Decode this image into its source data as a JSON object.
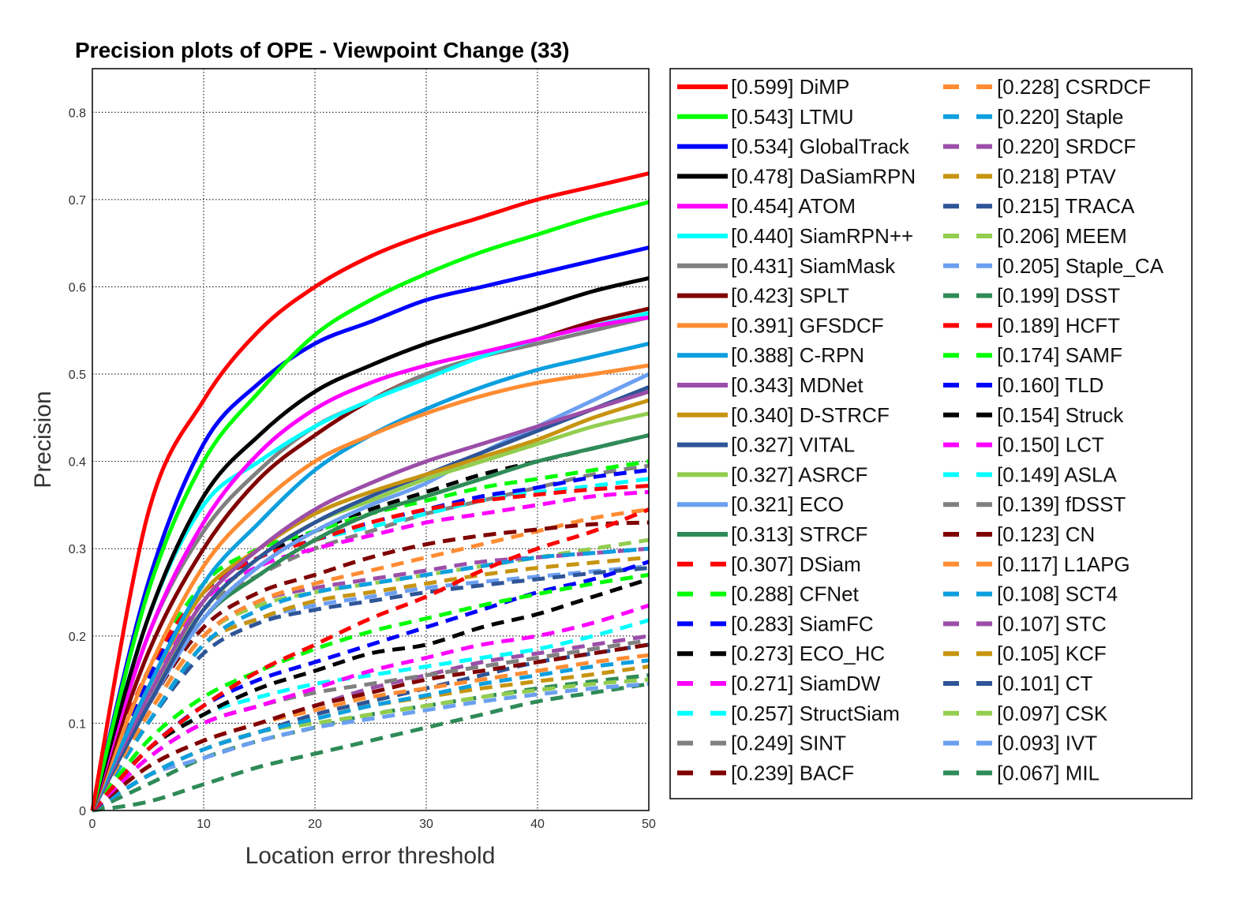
{
  "chart_data": {
    "type": "line",
    "title": "Precision plots of OPE - Viewpoint Change (33)",
    "xlabel": "Location error threshold",
    "ylabel": "Precision",
    "xlim": [
      0,
      50
    ],
    "ylim": [
      0,
      0.85
    ],
    "xticks": [
      "0",
      "10",
      "20",
      "30",
      "40",
      "50"
    ],
    "yticks": [
      "0",
      "0.1",
      "0.2",
      "0.3",
      "0.4",
      "0.5",
      "0.6",
      "0.7",
      "0.8"
    ],
    "grid": true,
    "legend_position": "outside-right",
    "x": [
      0,
      5,
      10,
      15,
      20,
      25,
      30,
      35,
      40,
      45,
      50
    ],
    "series": [
      {
        "name": "[0.599] DiMP",
        "color": "#ff0000",
        "style": "solid",
        "values": [
          0,
          0.34,
          0.47,
          0.55,
          0.6,
          0.635,
          0.66,
          0.68,
          0.7,
          0.715,
          0.73
        ]
      },
      {
        "name": "[0.543] LTMU",
        "color": "#00ff00",
        "style": "solid",
        "values": [
          0,
          0.25,
          0.4,
          0.48,
          0.545,
          0.585,
          0.615,
          0.64,
          0.66,
          0.68,
          0.697
        ]
      },
      {
        "name": "[0.534] GlobalTrack",
        "color": "#0000ff",
        "style": "solid",
        "values": [
          0,
          0.26,
          0.42,
          0.49,
          0.535,
          0.56,
          0.585,
          0.6,
          0.615,
          0.63,
          0.645
        ]
      },
      {
        "name": "[0.478] DaSiamRPN",
        "color": "#000000",
        "style": "solid",
        "values": [
          0,
          0.22,
          0.36,
          0.43,
          0.48,
          0.51,
          0.535,
          0.555,
          0.575,
          0.595,
          0.61
        ]
      },
      {
        "name": "[0.454] ATOM",
        "color": "#ff00ff",
        "style": "solid",
        "values": [
          0,
          0.2,
          0.33,
          0.41,
          0.46,
          0.49,
          0.51,
          0.525,
          0.54,
          0.555,
          0.565
        ]
      },
      {
        "name": "[0.440] SiamRPN++",
        "color": "#00ffff",
        "style": "solid",
        "values": [
          0,
          0.22,
          0.35,
          0.4,
          0.44,
          0.47,
          0.495,
          0.52,
          0.54,
          0.555,
          0.57
        ]
      },
      {
        "name": "[0.431] SiamMask",
        "color": "#808080",
        "style": "solid",
        "values": [
          0,
          0.2,
          0.32,
          0.39,
          0.44,
          0.47,
          0.5,
          0.52,
          0.535,
          0.55,
          0.565
        ]
      },
      {
        "name": "[0.423] SPLT",
        "color": "#800000",
        "style": "solid",
        "values": [
          0,
          0.18,
          0.3,
          0.38,
          0.43,
          0.47,
          0.5,
          0.52,
          0.54,
          0.56,
          0.575
        ]
      },
      {
        "name": "[0.391] GFSDCF",
        "color": "#ff8c32",
        "style": "solid",
        "values": [
          0,
          0.16,
          0.28,
          0.35,
          0.4,
          0.43,
          0.455,
          0.475,
          0.49,
          0.5,
          0.51
        ]
      },
      {
        "name": "[0.388] C-RPN",
        "color": "#0c9fdf",
        "style": "solid",
        "values": [
          0,
          0.14,
          0.26,
          0.33,
          0.39,
          0.43,
          0.46,
          0.485,
          0.505,
          0.52,
          0.535
        ]
      },
      {
        "name": "[0.343] MDNet",
        "color": "#9b4ea8",
        "style": "solid",
        "values": [
          0,
          0.13,
          0.24,
          0.3,
          0.345,
          0.375,
          0.4,
          0.42,
          0.44,
          0.46,
          0.48
        ]
      },
      {
        "name": "[0.340] D-STRCF",
        "color": "#c79410",
        "style": "solid",
        "values": [
          0,
          0.14,
          0.25,
          0.3,
          0.34,
          0.365,
          0.385,
          0.405,
          0.425,
          0.45,
          0.47
        ]
      },
      {
        "name": "[0.327] VITAL",
        "color": "#2e5597",
        "style": "solid",
        "values": [
          0,
          0.12,
          0.23,
          0.29,
          0.33,
          0.36,
          0.385,
          0.41,
          0.435,
          0.46,
          0.485
        ]
      },
      {
        "name": "[0.327] ASRCF",
        "color": "#92cd4f",
        "style": "solid",
        "values": [
          0,
          0.13,
          0.23,
          0.29,
          0.33,
          0.355,
          0.38,
          0.4,
          0.42,
          0.44,
          0.455
        ]
      },
      {
        "name": "[0.321] ECO",
        "color": "#6b9ff0",
        "style": "solid",
        "values": [
          0,
          0.12,
          0.22,
          0.28,
          0.32,
          0.35,
          0.375,
          0.41,
          0.44,
          0.47,
          0.5
        ]
      },
      {
        "name": "[0.313] STRCF",
        "color": "#2e8b57",
        "style": "solid",
        "values": [
          0,
          0.12,
          0.22,
          0.27,
          0.31,
          0.34,
          0.36,
          0.38,
          0.4,
          0.415,
          0.43
        ]
      },
      {
        "name": "[0.307] DSiam",
        "color": "#ff0000",
        "style": "dashed",
        "values": [
          0,
          0.07,
          0.12,
          0.16,
          0.19,
          0.22,
          0.245,
          0.275,
          0.3,
          0.32,
          0.345
        ]
      },
      {
        "name": "[0.288] CFNet",
        "color": "#00ff00",
        "style": "dashed",
        "values": [
          0,
          0.08,
          0.13,
          0.16,
          0.185,
          0.205,
          0.22,
          0.235,
          0.248,
          0.26,
          0.27
        ]
      },
      {
        "name": "[0.283] SiamFC",
        "color": "#0000ff",
        "style": "dashed",
        "values": [
          0,
          0.07,
          0.12,
          0.15,
          0.17,
          0.19,
          0.21,
          0.23,
          0.25,
          0.265,
          0.285
        ]
      },
      {
        "name": "[0.273] ECO_HC",
        "color": "#000000",
        "style": "dashed",
        "values": [
          0,
          0.07,
          0.11,
          0.14,
          0.16,
          0.18,
          0.19,
          0.21,
          0.225,
          0.245,
          0.265
        ]
      },
      {
        "name": "[0.271] SiamDW",
        "color": "#ff00ff",
        "style": "dashed",
        "values": [
          0,
          0.06,
          0.1,
          0.12,
          0.14,
          0.16,
          0.175,
          0.19,
          0.2,
          0.215,
          0.235
        ]
      },
      {
        "name": "[0.257] StructSiam",
        "color": "#00ffff",
        "style": "dashed",
        "values": [
          0,
          0.07,
          0.11,
          0.13,
          0.145,
          0.155,
          0.165,
          0.175,
          0.185,
          0.2,
          0.218
        ]
      },
      {
        "name": "[0.249] SINT",
        "color": "#808080",
        "style": "dashed",
        "values": [
          0,
          0.06,
          0.1,
          0.12,
          0.135,
          0.145,
          0.155,
          0.165,
          0.175,
          0.185,
          0.195
        ]
      },
      {
        "name": "[0.239] BACF",
        "color": "#800000",
        "style": "dashed",
        "values": [
          0,
          0.05,
          0.08,
          0.1,
          0.12,
          0.135,
          0.15,
          0.16,
          0.17,
          0.18,
          0.19
        ]
      },
      {
        "name": "[0.228] CSRDCF",
        "color": "#ff8c32",
        "style": "dashed",
        "values": [
          0,
          0.05,
          0.08,
          0.1,
          0.115,
          0.13,
          0.14,
          0.15,
          0.16,
          0.17,
          0.178
        ]
      },
      {
        "name": "[0.220] Staple",
        "color": "#0c9fdf",
        "style": "dashed",
        "values": [
          0,
          0.04,
          0.07,
          0.09,
          0.105,
          0.12,
          0.132,
          0.145,
          0.155,
          0.165,
          0.172
        ]
      },
      {
        "name": "[0.220] SRDCF",
        "color": "#9b4ea8",
        "style": "dashed",
        "values": [
          0,
          0.05,
          0.08,
          0.1,
          0.12,
          0.14,
          0.155,
          0.17,
          0.18,
          0.19,
          0.2
        ]
      },
      {
        "name": "[0.218] PTAV",
        "color": "#c79410",
        "style": "dashed",
        "values": [
          0,
          0.04,
          0.07,
          0.09,
          0.105,
          0.12,
          0.13,
          0.14,
          0.148,
          0.156,
          0.165
        ]
      },
      {
        "name": "[0.215] TRACA",
        "color": "#2e5597",
        "style": "dashed",
        "values": [
          0,
          0.04,
          0.07,
          0.09,
          0.11,
          0.125,
          0.14,
          0.155,
          0.17,
          0.18,
          0.19
        ]
      },
      {
        "name": "[0.206] MEEM",
        "color": "#92cd4f",
        "style": "dashed",
        "values": [
          0,
          0.04,
          0.07,
          0.09,
          0.1,
          0.11,
          0.12,
          0.13,
          0.138,
          0.145,
          0.15
        ]
      },
      {
        "name": "[0.205] Staple_CA",
        "color": "#6b9ff0",
        "style": "dashed",
        "values": [
          0,
          0.04,
          0.06,
          0.08,
          0.095,
          0.105,
          0.115,
          0.125,
          0.133,
          0.14,
          0.145
        ]
      },
      {
        "name": "[0.199] DSST",
        "color": "#2e8b57",
        "style": "dashed",
        "values": [
          0,
          0.03,
          0.06,
          0.08,
          0.095,
          0.11,
          0.12,
          0.13,
          0.14,
          0.148,
          0.155
        ]
      },
      {
        "name": "[0.189] HCFT",
        "color": "#ff0000",
        "style": "dashed",
        "values": [
          0,
          0.16,
          0.25,
          0.29,
          0.31,
          0.33,
          0.345,
          0.355,
          0.362,
          0.368,
          0.372
        ]
      },
      {
        "name": "[0.174] SAMF",
        "color": "#00ff00",
        "style": "dashed",
        "values": [
          0,
          0.16,
          0.26,
          0.3,
          0.32,
          0.34,
          0.355,
          0.37,
          0.38,
          0.39,
          0.4
        ]
      },
      {
        "name": "[0.160] TLD",
        "color": "#0000ff",
        "style": "dashed",
        "values": [
          0,
          0.15,
          0.25,
          0.29,
          0.31,
          0.33,
          0.345,
          0.36,
          0.37,
          0.382,
          0.39
        ]
      },
      {
        "name": "[0.154] Struck",
        "color": "#000000",
        "style": "dashed",
        "values": [
          0,
          0.15,
          0.25,
          0.29,
          0.32,
          0.345,
          0.365,
          0.385,
          0.4,
          0.415,
          0.43
        ]
      },
      {
        "name": "[0.150] LCT",
        "color": "#ff00ff",
        "style": "dashed",
        "values": [
          0,
          0.14,
          0.24,
          0.28,
          0.3,
          0.315,
          0.33,
          0.34,
          0.35,
          0.36,
          0.365
        ]
      },
      {
        "name": "[0.149] ASLA",
        "color": "#00ffff",
        "style": "dashed",
        "values": [
          0,
          0.15,
          0.25,
          0.29,
          0.31,
          0.325,
          0.34,
          0.355,
          0.365,
          0.372,
          0.38
        ]
      },
      {
        "name": "[0.139] fDSST",
        "color": "#808080",
        "style": "dashed",
        "values": [
          0,
          0.13,
          0.23,
          0.27,
          0.3,
          0.32,
          0.34,
          0.355,
          0.37,
          0.385,
          0.395
        ]
      },
      {
        "name": "[0.123] CN",
        "color": "#800000",
        "style": "dashed",
        "values": [
          0,
          0.12,
          0.21,
          0.25,
          0.27,
          0.29,
          0.305,
          0.315,
          0.322,
          0.328,
          0.33
        ]
      },
      {
        "name": "[0.117] L1APG",
        "color": "#ff8c32",
        "style": "dashed",
        "values": [
          0,
          0.11,
          0.2,
          0.24,
          0.26,
          0.275,
          0.29,
          0.305,
          0.32,
          0.335,
          0.345
        ]
      },
      {
        "name": "[0.108] SCT4",
        "color": "#0c9fdf",
        "style": "dashed",
        "values": [
          0,
          0.1,
          0.19,
          0.23,
          0.25,
          0.26,
          0.27,
          0.28,
          0.29,
          0.295,
          0.3
        ]
      },
      {
        "name": "[0.107] STC",
        "color": "#9b4ea8",
        "style": "dashed",
        "values": [
          0,
          0.11,
          0.2,
          0.24,
          0.255,
          0.265,
          0.275,
          0.285,
          0.29,
          0.295,
          0.3
        ]
      },
      {
        "name": "[0.105] KCF",
        "color": "#c79410",
        "style": "dashed",
        "values": [
          0,
          0.1,
          0.19,
          0.22,
          0.24,
          0.25,
          0.26,
          0.27,
          0.278,
          0.284,
          0.29
        ]
      },
      {
        "name": "[0.101] CT",
        "color": "#2e5597",
        "style": "dashed",
        "values": [
          0,
          0.1,
          0.18,
          0.215,
          0.23,
          0.24,
          0.25,
          0.258,
          0.265,
          0.272,
          0.278
        ]
      },
      {
        "name": "[0.097] CSK",
        "color": "#92cd4f",
        "style": "dashed",
        "values": [
          0,
          0.11,
          0.2,
          0.235,
          0.25,
          0.26,
          0.27,
          0.28,
          0.29,
          0.3,
          0.31
        ]
      },
      {
        "name": "[0.093] IVT",
        "color": "#6b9ff0",
        "style": "dashed",
        "values": [
          0,
          0.1,
          0.19,
          0.22,
          0.235,
          0.245,
          0.255,
          0.262,
          0.268,
          0.274,
          0.28
        ]
      },
      {
        "name": "[0.067] MIL",
        "color": "#2e8b57",
        "style": "dashed",
        "values": [
          0,
          0.01,
          0.03,
          0.05,
          0.065,
          0.08,
          0.095,
          0.11,
          0.125,
          0.135,
          0.145
        ]
      }
    ]
  }
}
